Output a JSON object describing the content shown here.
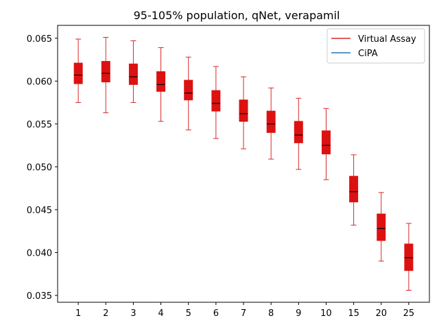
{
  "chart_data": {
    "type": "box",
    "title": "95-105% population, qNet, verapamil",
    "xlabel": "",
    "ylabel": "",
    "categories": [
      "1",
      "2",
      "3",
      "4",
      "5",
      "6",
      "7",
      "8",
      "9",
      "10",
      "15",
      "20",
      "25"
    ],
    "ylim": [
      0.0342,
      0.0665
    ],
    "yticks": [
      0.035,
      0.04,
      0.045,
      0.05,
      0.055,
      0.06,
      0.065
    ],
    "ytick_labels": [
      "0.035",
      "0.040",
      "0.045",
      "0.050",
      "0.055",
      "0.060",
      "0.065"
    ],
    "grid": false,
    "legend": {
      "placement": "top-right",
      "entries": [
        "Virtual Assay",
        "CiPA"
      ]
    },
    "series": [
      {
        "name": "Virtual Assay",
        "color": "#d62728",
        "fill": "#dd1111",
        "boxes": [
          {
            "whislo": 0.0575,
            "q1": 0.0597,
            "med": 0.0607,
            "q3": 0.0621,
            "whishi": 0.0649
          },
          {
            "whislo": 0.0563,
            "q1": 0.0599,
            "med": 0.0609,
            "q3": 0.0623,
            "whishi": 0.0651
          },
          {
            "whislo": 0.0575,
            "q1": 0.0596,
            "med": 0.0605,
            "q3": 0.062,
            "whishi": 0.0647
          },
          {
            "whislo": 0.0553,
            "q1": 0.0588,
            "med": 0.0596,
            "q3": 0.0611,
            "whishi": 0.0639
          },
          {
            "whislo": 0.0543,
            "q1": 0.0578,
            "med": 0.0586,
            "q3": 0.0601,
            "whishi": 0.0628
          },
          {
            "whislo": 0.0533,
            "q1": 0.0565,
            "med": 0.0574,
            "q3": 0.0589,
            "whishi": 0.0617
          },
          {
            "whislo": 0.0521,
            "q1": 0.0553,
            "med": 0.0562,
            "q3": 0.0578,
            "whishi": 0.0605
          },
          {
            "whislo": 0.0509,
            "q1": 0.054,
            "med": 0.055,
            "q3": 0.0565,
            "whishi": 0.0592
          },
          {
            "whislo": 0.0497,
            "q1": 0.0528,
            "med": 0.0537,
            "q3": 0.0553,
            "whishi": 0.058
          },
          {
            "whislo": 0.0485,
            "q1": 0.0515,
            "med": 0.0525,
            "q3": 0.0542,
            "whishi": 0.0568
          },
          {
            "whislo": 0.0432,
            "q1": 0.0459,
            "med": 0.0471,
            "q3": 0.0489,
            "whishi": 0.0514
          },
          {
            "whislo": 0.039,
            "q1": 0.0414,
            "med": 0.0428,
            "q3": 0.0445,
            "whishi": 0.047
          },
          {
            "whislo": 0.0356,
            "q1": 0.0379,
            "med": 0.0394,
            "q3": 0.041,
            "whishi": 0.0434
          }
        ]
      },
      {
        "name": "CiPA",
        "color": "#1f77b4",
        "boxes": []
      }
    ]
  }
}
